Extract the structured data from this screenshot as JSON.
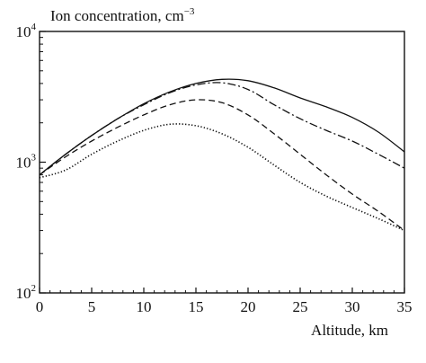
{
  "chart_data": {
    "type": "line",
    "title": "",
    "ylabel_text": "Ion concentration, cm",
    "ylabel_exp": "−3",
    "xlabel": "Altitude, km",
    "xlim": [
      0,
      35
    ],
    "ylim": [
      100,
      10000
    ],
    "yscale": "log",
    "x_ticks": [
      "0",
      "5",
      "10",
      "15",
      "20",
      "25",
      "30",
      "35"
    ],
    "y_ticks": [
      {
        "base": "10",
        "exp": "2",
        "value": 100
      },
      {
        "base": "10",
        "exp": "3",
        "value": 1000
      },
      {
        "base": "10",
        "exp": "4",
        "value": 10000
      }
    ],
    "grid": false,
    "legend": "none",
    "series": [
      {
        "style": "solid",
        "x": [
          0,
          2.5,
          5,
          7.5,
          10,
          12.5,
          15,
          17.5,
          20,
          22.5,
          25,
          27.5,
          30,
          32.5,
          35
        ],
        "y": [
          800,
          1150,
          1600,
          2150,
          2800,
          3450,
          4000,
          4300,
          4200,
          3700,
          3100,
          2650,
          2200,
          1700,
          1200
        ]
      },
      {
        "style": "dashdot",
        "x": [
          0,
          2.5,
          5,
          7.5,
          10,
          12.5,
          15,
          17.5,
          20,
          22.5,
          25,
          27.5,
          30,
          32.5,
          35
        ],
        "y": [
          800,
          1150,
          1600,
          2150,
          2750,
          3400,
          3900,
          4050,
          3600,
          2750,
          2150,
          1750,
          1450,
          1150,
          900
        ]
      },
      {
        "style": "dashed",
        "x": [
          0,
          2.5,
          5,
          7.5,
          10,
          12.5,
          15,
          17.5,
          20,
          22.5,
          25,
          27.5,
          30,
          32.5,
          35
        ],
        "y": [
          800,
          1100,
          1450,
          1850,
          2300,
          2750,
          3000,
          2850,
          2300,
          1650,
          1150,
          800,
          570,
          420,
          300
        ]
      },
      {
        "style": "dotted",
        "x": [
          0,
          2.5,
          5,
          7.5,
          10,
          12.5,
          15,
          17.5,
          20,
          22.5,
          25,
          27.5,
          30,
          32.5,
          35
        ],
        "y": [
          760,
          870,
          1150,
          1450,
          1750,
          1950,
          1900,
          1650,
          1300,
          950,
          700,
          550,
          450,
          370,
          300
        ]
      }
    ]
  }
}
